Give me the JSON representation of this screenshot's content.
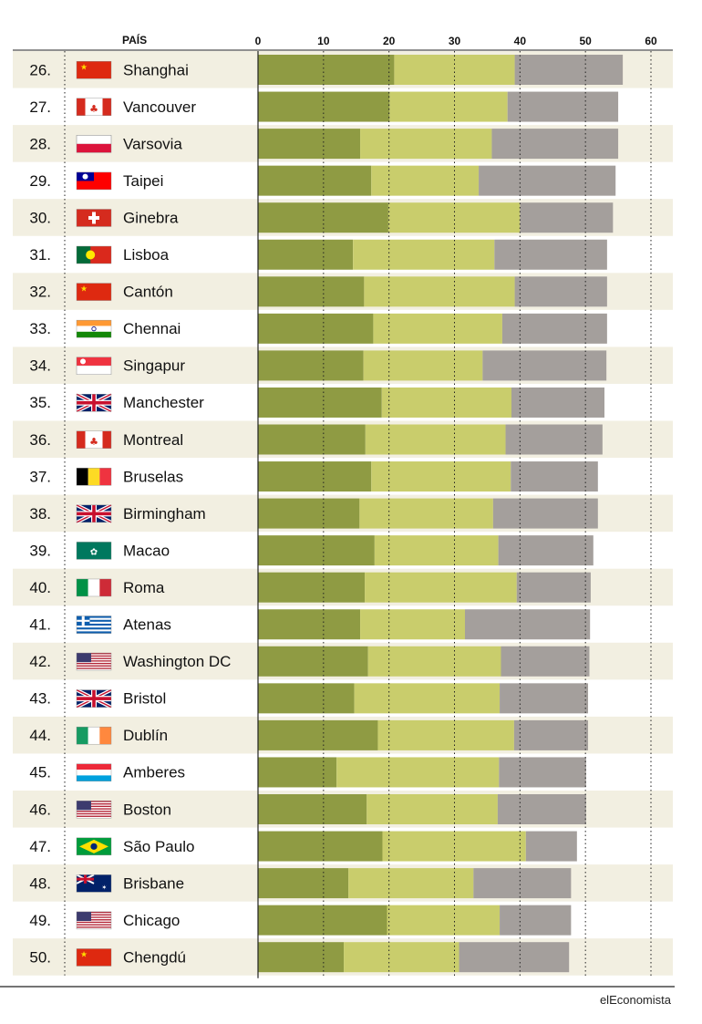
{
  "colors": {
    "band": "#f2efe1",
    "seg1": "#8f9b43",
    "seg2": "#c9cd6c",
    "seg3": "#a49f9c"
  },
  "header": {
    "pais_label": "PAÍS"
  },
  "source_label": "elEconomista",
  "chart_data": {
    "type": "bar",
    "orientation": "horizontal",
    "stacked": true,
    "xlim": [
      0,
      60
    ],
    "xticks": [
      0,
      10,
      20,
      30,
      40,
      50,
      60
    ],
    "grid": "dotted vertical",
    "rows": [
      {
        "rank": "26.",
        "city": "Shanghai",
        "flag": "china-flag",
        "segments": [
          20.8,
          18.4,
          16.5
        ]
      },
      {
        "rank": "27.",
        "city": "Vancouver",
        "flag": "canada-flag",
        "segments": [
          20.1,
          18.0,
          16.9
        ]
      },
      {
        "rank": "28.",
        "city": "Varsovia",
        "flag": "poland-flag",
        "segments": [
          15.6,
          20.1,
          19.3
        ]
      },
      {
        "rank": "29.",
        "city": "Taipei",
        "flag": "taiwan-flag",
        "segments": [
          17.3,
          16.4,
          20.9
        ]
      },
      {
        "rank": "30.",
        "city": "Ginebra",
        "flag": "switzerland-flag",
        "segments": [
          19.9,
          20.1,
          14.2
        ]
      },
      {
        "rank": "31.",
        "city": "Lisboa",
        "flag": "portugal-flag",
        "segments": [
          14.5,
          21.6,
          17.2
        ]
      },
      {
        "rank": "32.",
        "city": "Cantón",
        "flag": "china-flag",
        "segments": [
          16.2,
          23.0,
          14.1
        ]
      },
      {
        "rank": "33.",
        "city": "Chennai",
        "flag": "india-flag",
        "segments": [
          17.6,
          19.7,
          16.0
        ]
      },
      {
        "rank": "34.",
        "city": "Singapur",
        "flag": "singapore-flag",
        "segments": [
          16.1,
          18.2,
          18.9
        ]
      },
      {
        "rank": "35.",
        "city": "Manchester",
        "flag": "uk-flag",
        "segments": [
          18.9,
          19.8,
          14.2
        ]
      },
      {
        "rank": "36.",
        "city": "Montreal",
        "flag": "canada-flag",
        "segments": [
          16.4,
          21.4,
          14.8
        ]
      },
      {
        "rank": "37.",
        "city": "Bruselas",
        "flag": "belgium-flag",
        "segments": [
          17.3,
          21.3,
          13.3
        ]
      },
      {
        "rank": "38.",
        "city": "Birmingham",
        "flag": "uk-flag",
        "segments": [
          15.5,
          20.4,
          16.0
        ]
      },
      {
        "rank": "39.",
        "city": "Macao",
        "flag": "macau-flag",
        "segments": [
          17.8,
          18.9,
          14.5
        ]
      },
      {
        "rank": "40.",
        "city": "Roma",
        "flag": "italy-flag",
        "segments": [
          16.3,
          23.2,
          11.3
        ]
      },
      {
        "rank": "41.",
        "city": "Atenas",
        "flag": "greece-flag",
        "segments": [
          15.6,
          16.0,
          19.1
        ]
      },
      {
        "rank": "42.",
        "city": "Washington DC",
        "flag": "usa-flag",
        "segments": [
          16.8,
          20.3,
          13.5
        ]
      },
      {
        "rank": "43.",
        "city": "Bristol",
        "flag": "uk-flag",
        "segments": [
          14.7,
          22.2,
          13.5
        ]
      },
      {
        "rank": "44.",
        "city": "Dublín",
        "flag": "ireland-flag",
        "segments": [
          18.3,
          20.8,
          11.3
        ]
      },
      {
        "rank": "45.",
        "city": "Amberes",
        "flag": "luxembourg-flag",
        "segments": [
          12.0,
          24.8,
          13.3
        ]
      },
      {
        "rank": "46.",
        "city": "Boston",
        "flag": "usa-flag",
        "segments": [
          16.6,
          20.0,
          13.5
        ]
      },
      {
        "rank": "47.",
        "city": "São Paulo",
        "flag": "brazil-flag",
        "segments": [
          19.0,
          21.9,
          7.8
        ]
      },
      {
        "rank": "48.",
        "city": "Brisbane",
        "flag": "australia-flag",
        "segments": [
          13.8,
          19.1,
          14.9
        ]
      },
      {
        "rank": "49.",
        "city": "Chicago",
        "flag": "usa-flag",
        "segments": [
          19.7,
          17.2,
          10.9
        ]
      },
      {
        "rank": "50.",
        "city": "Chengdú",
        "flag": "china-flag",
        "segments": [
          13.1,
          17.6,
          16.8
        ]
      }
    ]
  }
}
